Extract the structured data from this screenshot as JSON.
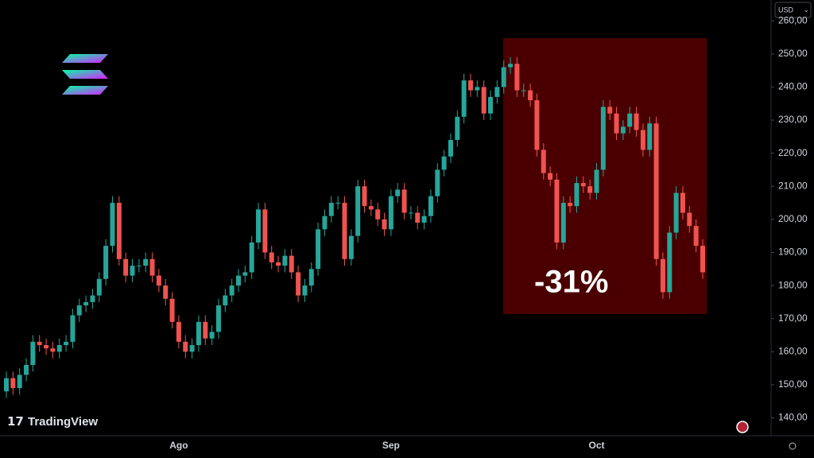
{
  "chart_data": {
    "type": "candlestick",
    "currency": "USD",
    "brand": "TradingView",
    "annotation": "-31%",
    "categories": [
      null,
      null,
      null,
      null,
      null,
      null,
      null,
      null,
      null,
      null,
      null,
      null,
      null,
      null,
      null,
      null,
      null,
      null,
      null,
      null,
      null,
      null,
      null,
      null,
      null,
      null,
      "Ago",
      null,
      null,
      null,
      null,
      null,
      null,
      null,
      null,
      null,
      null,
      null,
      null,
      null,
      null,
      null,
      null,
      null,
      null,
      null,
      null,
      null,
      null,
      null,
      null,
      null,
      null,
      null,
      null,
      null,
      null,
      null,
      "Sep",
      null,
      null,
      null,
      null,
      null,
      null,
      null,
      null,
      null,
      null,
      null,
      null,
      null,
      null,
      null,
      null,
      null,
      null,
      null,
      null,
      null,
      null,
      null,
      null,
      null,
      null,
      null,
      null,
      null,
      null,
      "Oct",
      null,
      null,
      null,
      null,
      null,
      null,
      null,
      null,
      null,
      null,
      null,
      null,
      null,
      null,
      null,
      null
    ],
    "open": [
      148,
      152,
      149,
      153,
      156,
      163,
      162,
      161,
      160,
      162,
      163,
      171,
      174,
      175,
      177,
      182,
      192,
      205,
      188,
      183,
      186,
      186,
      188,
      183,
      180,
      176,
      169,
      163,
      160,
      162,
      169,
      164,
      166,
      174,
      177,
      180,
      183,
      184,
      193,
      203,
      190,
      187,
      186,
      189,
      184,
      177,
      180,
      185,
      197,
      201,
      205,
      205,
      188,
      195,
      210,
      204,
      203,
      200,
      197,
      207,
      209,
      202,
      202,
      199,
      201,
      207,
      215,
      219,
      224,
      231,
      242,
      239,
      240,
      232,
      237,
      240,
      246,
      247,
      239,
      239,
      236,
      221,
      214,
      212,
      193,
      205,
      204,
      211,
      210,
      208,
      215,
      234,
      232,
      226,
      228,
      232,
      227,
      221,
      229,
      188,
      178,
      196,
      208,
      202,
      198,
      192
    ],
    "high": [
      154,
      154,
      155,
      158,
      165,
      165,
      164,
      163,
      164,
      165,
      173,
      176,
      177,
      179,
      184,
      194,
      207,
      207,
      190,
      188,
      188,
      190,
      190,
      185,
      182,
      178,
      171,
      165,
      164,
      171,
      171,
      168,
      176,
      179,
      182,
      185,
      186,
      195,
      205,
      205,
      192,
      189,
      191,
      191,
      186,
      182,
      187,
      199,
      203,
      207,
      207,
      207,
      197,
      212,
      212,
      206,
      205,
      202,
      209,
      211,
      211,
      204,
      204,
      203,
      209,
      217,
      221,
      226,
      233,
      244,
      244,
      242,
      242,
      239,
      242,
      248,
      249,
      249,
      241,
      241,
      238,
      223,
      216,
      214,
      207,
      207,
      213,
      213,
      212,
      217,
      236,
      236,
      234,
      230,
      234,
      234,
      229,
      231,
      231,
      190,
      198,
      210,
      210,
      204,
      200,
      194
    ],
    "low": [
      146,
      147,
      147,
      151,
      154,
      160,
      159,
      158,
      158,
      160,
      161,
      169,
      172,
      173,
      175,
      180,
      190,
      186,
      181,
      181,
      184,
      184,
      181,
      178,
      174,
      167,
      161,
      158,
      158,
      160,
      162,
      162,
      164,
      172,
      175,
      178,
      181,
      182,
      191,
      188,
      185,
      184,
      184,
      182,
      175,
      175,
      178,
      183,
      195,
      199,
      203,
      186,
      186,
      193,
      202,
      201,
      198,
      195,
      195,
      205,
      200,
      200,
      197,
      197,
      199,
      205,
      213,
      217,
      222,
      229,
      237,
      237,
      230,
      230,
      235,
      238,
      244,
      237,
      237,
      234,
      219,
      212,
      210,
      191,
      191,
      202,
      202,
      208,
      206,
      206,
      213,
      230,
      224,
      224,
      226,
      225,
      219,
      219,
      186,
      176,
      176,
      194,
      200,
      196,
      190,
      182
    ],
    "close": [
      152,
      149,
      153,
      156,
      163,
      162,
      161,
      160,
      162,
      163,
      171,
      174,
      175,
      177,
      182,
      192,
      205,
      188,
      183,
      186,
      186,
      188,
      183,
      180,
      176,
      169,
      163,
      160,
      162,
      169,
      164,
      166,
      174,
      177,
      180,
      183,
      184,
      193,
      203,
      190,
      187,
      186,
      189,
      184,
      177,
      180,
      185,
      197,
      201,
      205,
      205,
      188,
      195,
      210,
      204,
      203,
      200,
      197,
      207,
      209,
      202,
      202,
      199,
      201,
      207,
      215,
      219,
      224,
      231,
      242,
      239,
      240,
      232,
      237,
      240,
      246,
      247,
      239,
      239,
      236,
      221,
      214,
      212,
      193,
      205,
      204,
      211,
      210,
      208,
      215,
      234,
      232,
      226,
      228,
      232,
      227,
      221,
      229,
      188,
      178,
      196,
      208,
      202,
      198,
      192,
      184
    ],
    "up_color": "#26a69a",
    "down_color": "#ef5350",
    "ylim": [
      134.6,
      266.3
    ],
    "yticks": [
      {
        "value": 140,
        "label": "140,00"
      },
      {
        "value": 150,
        "label": "150,00"
      },
      {
        "value": 160,
        "label": "160,00"
      },
      {
        "value": 170,
        "label": "170,00"
      },
      {
        "value": 180,
        "label": "180,00"
      },
      {
        "value": 190,
        "label": "190,00"
      },
      {
        "value": 200,
        "label": "200,00"
      },
      {
        "value": 210,
        "label": "210,00"
      },
      {
        "value": 220,
        "label": "220,00"
      },
      {
        "value": 230,
        "label": "230,00"
      },
      {
        "value": 240,
        "label": "240,00"
      },
      {
        "value": 250,
        "label": "250,00"
      },
      {
        "value": 260,
        "label": "260,00"
      }
    ]
  }
}
